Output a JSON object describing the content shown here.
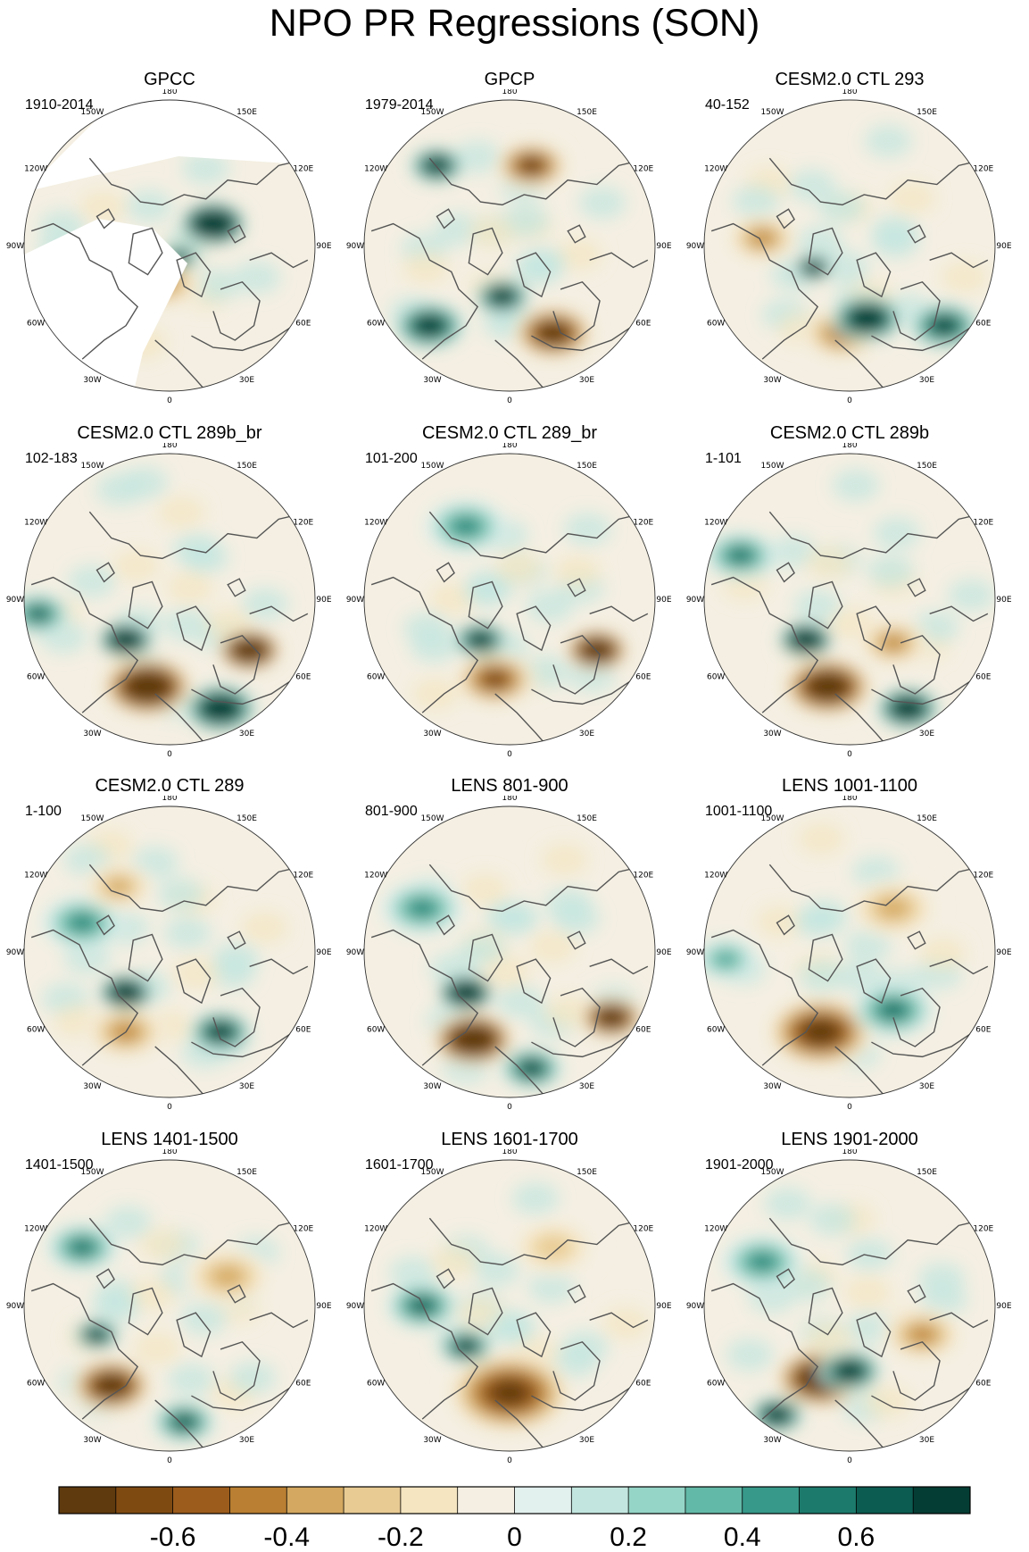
{
  "title": "NPO PR Regressions (SON)",
  "panels": [
    {
      "title": "GPCC",
      "years": "1910-2014"
    },
    {
      "title": "GPCP",
      "years": "1979-2014"
    },
    {
      "title": "CESM2.0 CTL 293",
      "years": "40-152"
    },
    {
      "title": "CESM2.0 CTL 289b_br",
      "years": "102-183"
    },
    {
      "title": "CESM2.0 CTL 289_br",
      "years": "101-200"
    },
    {
      "title": "CESM2.0 CTL 289b",
      "years": "1-101"
    },
    {
      "title": "CESM2.0 CTL 289",
      "years": "1-100"
    },
    {
      "title": "LENS 801-900",
      "years": "801-900"
    },
    {
      "title": "LENS 1001-1100",
      "years": "1001-1100"
    },
    {
      "title": "LENS 1401-1500",
      "years": "1401-1500"
    },
    {
      "title": "LENS 1601-1700",
      "years": "1601-1700"
    },
    {
      "title": "LENS 1901-2000",
      "years": "1901-2000"
    }
  ],
  "longitude_labels": [
    "180",
    "150E",
    "120E",
    "90E",
    "60E",
    "30E",
    "0",
    "30W",
    "60W",
    "90W",
    "120W",
    "150W"
  ],
  "colorbar": {
    "colors": [
      "#5e3a0e",
      "#7f4a12",
      "#9c5c1c",
      "#ba7f32",
      "#d4a860",
      "#e8cb93",
      "#f5e5c0",
      "#f4efe2",
      "#e2f0ee",
      "#c2e6df",
      "#95d5c7",
      "#63b9a8",
      "#37998a",
      "#1c7a6c",
      "#0c5c51",
      "#043d34"
    ],
    "tick_labels": [
      "-0.6",
      "-0.4",
      "-0.2",
      "0",
      "0.2",
      "0.4",
      "0.6"
    ]
  },
  "blobs": [
    [
      [
        -0.5,
        -0.05,
        0.25,
        45
      ],
      [
        1.2,
        0.07,
        0.08,
        22
      ],
      [
        2.4,
        0.3,
        -0.15,
        36
      ]
    ],
    [
      [
        1.2,
        -0.55,
        0.55,
        40
      ],
      [
        -1.1,
        0.3,
        0.6,
        45
      ],
      [
        1.5,
        -0.05,
        0.35,
        30
      ],
      [
        -0.9,
        0.15,
        -0.55,
        40
      ],
      [
        1.4,
        -0.5,
        -0.55,
        30
      ]
    ],
    [
      [
        -0.6,
        -0.05,
        0.6,
        45
      ],
      [
        1.5,
        0.12,
        0.5,
        40
      ],
      [
        1.0,
        0.65,
        0.55,
        40
      ],
      [
        2.4,
        -0.25,
        0.15,
        20
      ],
      [
        -0.5,
        -0.6,
        -0.05,
        40
      ]
    ],
    [
      [
        -1.5,
        -0.15,
        0.6,
        50
      ],
      [
        2.1,
        -0.3,
        0.28,
        30
      ],
      [
        1.6,
        0.35,
        0.75,
        40
      ],
      [
        -1.8,
        0.55,
        0.35,
        35
      ],
      [
        0.8,
        -0.9,
        0.1,
        35
      ]
    ],
    [
      [
        -0.8,
        -0.1,
        0.55,
        45
      ],
      [
        1.4,
        -0.2,
        0.28,
        30
      ],
      [
        -1.6,
        0.6,
        0.35,
        35
      ],
      [
        0.6,
        -0.3,
        -0.5,
        45
      ]
    ],
    [
      [
        -1.3,
        -0.15,
        0.6,
        50
      ],
      [
        2.0,
        -0.3,
        0.28,
        30
      ],
      [
        1.6,
        0.4,
        0.75,
        35
      ],
      [
        -0.5,
        0.3,
        0.3,
        40
      ],
      [
        0.7,
        -0.75,
        -0.3,
        40
      ]
    ],
    [
      [
        -0.5,
        -0.3,
        0.55,
        45
      ],
      [
        1.2,
        0.35,
        0.55,
        35
      ],
      [
        2.0,
        -0.3,
        0.28,
        30
      ],
      [
        0.6,
        -0.6,
        -0.2,
        45
      ],
      [
        -0.4,
        -0.35,
        -0.45,
        40
      ]
    ],
    [
      [
        -1.6,
        -0.25,
        0.6,
        45
      ],
      [
        2.3,
        -0.3,
        0.28,
        30
      ],
      [
        1.0,
        0.15,
        0.8,
        35
      ],
      [
        -1.4,
        0.7,
        0.45,
        35
      ],
      [
        0.6,
        -0.6,
        -0.3,
        45
      ]
    ],
    [
      [
        -1.0,
        -0.2,
        0.55,
        60
      ],
      [
        0.7,
        0.3,
        0.4,
        45
      ],
      [
        0.5,
        -0.85,
        0.05,
        35
      ],
      [
        -0.4,
        0.3,
        -0.3,
        50
      ]
    ],
    [
      [
        -1.2,
        -0.4,
        0.55,
        45
      ],
      [
        0.9,
        0.1,
        0.8,
        35
      ],
      [
        1.4,
        -0.5,
        0.2,
        25
      ],
      [
        0.7,
        -0.6,
        -0.4,
        40
      ],
      [
        -0.4,
        0.4,
        -0.2,
        50
      ]
    ],
    [
      [
        -0.9,
        0.0,
        0.6,
        70
      ],
      [
        1.2,
        -0.3,
        0.28,
        30
      ],
      [
        0.8,
        -0.6,
        0.0,
        40
      ],
      [
        -0.3,
        0.3,
        -0.4,
        50
      ]
    ],
    [
      [
        -1.4,
        -0.2,
        0.5,
        50
      ],
      [
        1.4,
        0.0,
        0.45,
        35
      ],
      [
        1.5,
        -0.5,
        0.75,
        30
      ],
      [
        -0.5,
        0.5,
        0.2,
        45
      ],
      [
        0.6,
        -0.6,
        -0.3,
        45
      ]
    ]
  ]
}
